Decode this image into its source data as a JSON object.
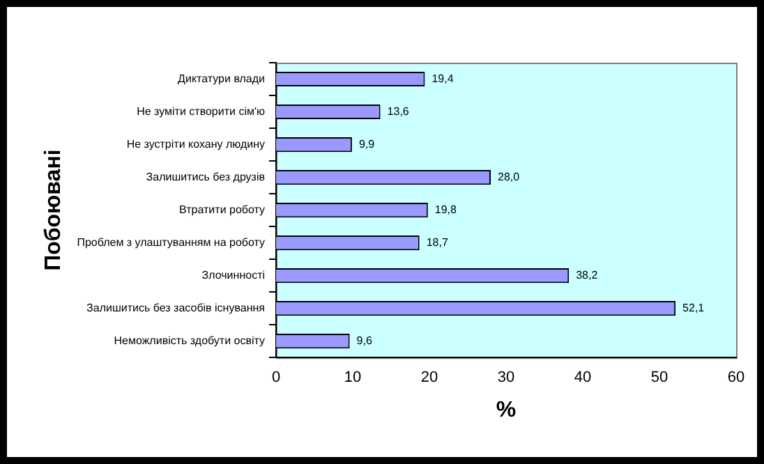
{
  "chart_data": {
    "type": "bar",
    "orientation": "horizontal",
    "xlabel": "%",
    "ylabel": "Побоювані",
    "categories": [
      "Диктатури влади",
      "Не зуміти створити сім'ю",
      "Не зустріти кохану людину",
      "Залишитись без друзів",
      "Втратити роботу",
      "Проблем з улаштуванням на роботу",
      "Злочинності",
      "Залишитись без засобів існування",
      "Неможливість здобути освіту"
    ],
    "values": [
      19.4,
      13.6,
      9.9,
      28.0,
      19.8,
      18.7,
      38.2,
      52.1,
      9.6
    ],
    "value_labels": [
      "19,4",
      "13,6",
      "9,9",
      "28,0",
      "19,8",
      "18,7",
      "38,2",
      "52,1",
      "9,6"
    ],
    "color": "#9999ff",
    "xlim": [
      0,
      60
    ],
    "xticks": [
      0,
      10,
      20,
      30,
      40,
      50,
      60
    ],
    "grid": false,
    "legend": false
  }
}
